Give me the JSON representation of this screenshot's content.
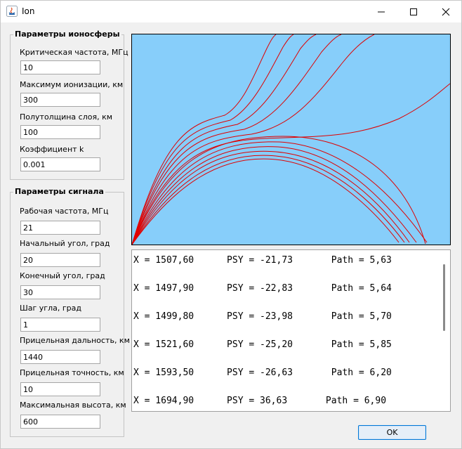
{
  "window": {
    "title": "Ion",
    "minimize_glyph": "—",
    "maximize_glyph": "☐",
    "close_glyph": "✕"
  },
  "ionosphere": {
    "title": "Параметры ионосферы",
    "fields": [
      {
        "label": "Критическая частота, МГц",
        "value": "10"
      },
      {
        "label": "Максимум ионизации, км",
        "value": "300"
      },
      {
        "label": "Полутолщина слоя, км",
        "value": "100"
      },
      {
        "label": "Коэффициент k",
        "value": "0.001"
      }
    ]
  },
  "signal": {
    "title": "Параметры сигнала",
    "fields": [
      {
        "label": "Рабочая частота, МГц",
        "value": "21"
      },
      {
        "label": "Начальный угол, град",
        "value": "20"
      },
      {
        "label": "Конечный угол, град",
        "value": "30"
      },
      {
        "label": "Шаг угла, град",
        "value": "1"
      },
      {
        "label": "Прицельная дальность, км",
        "value": "1440"
      },
      {
        "label": "Прицельная точность, км",
        "value": "10"
      },
      {
        "label": "Максимальная высота, км",
        "value": "600"
      }
    ]
  },
  "output": {
    "lines": [
      "X = 1507,60      PSY = -21,73       Path = 5,63",
      "X = 1497,90      PSY = -22,83       Path = 5,64",
      "X = 1499,80      PSY = -23,98       Path = 5,70",
      "X = 1521,60      PSY = -25,20       Path = 5,85",
      "X = 1593,50      PSY = -26,63       Path = 6,20",
      "X = 1694,90      PSY = 36,63       Path = 6,90"
    ]
  },
  "ok_label": "OK",
  "colors": {
    "plot_bg": "#87cefa",
    "ray": "#e00000",
    "accent": "#0078d7"
  }
}
